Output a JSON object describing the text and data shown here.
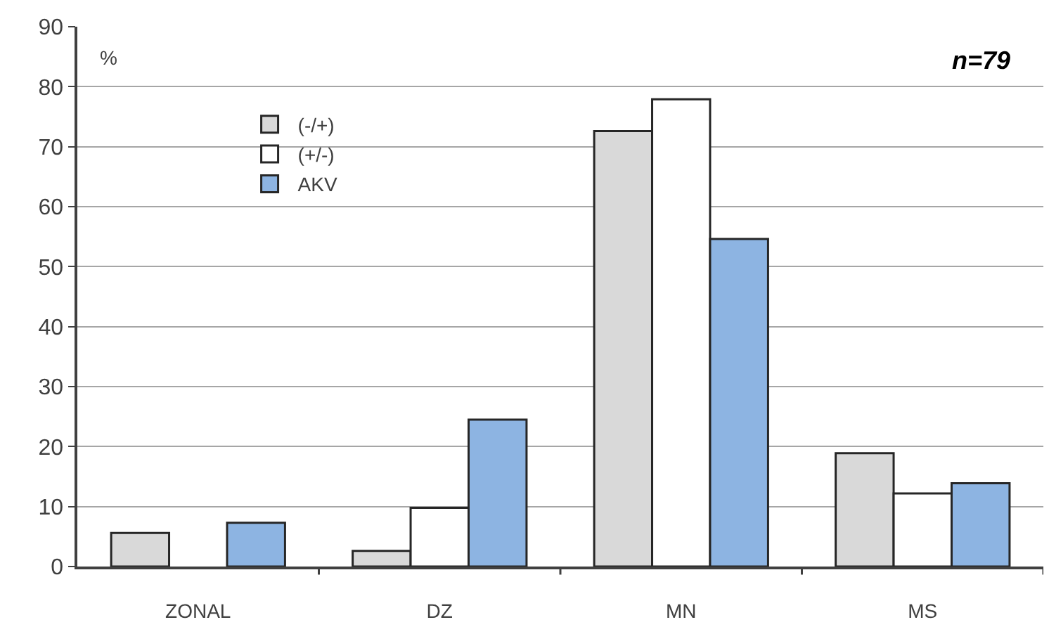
{
  "chart_data": {
    "type": "bar",
    "categories": [
      "ZONAL",
      "DZ",
      "MN",
      "MS"
    ],
    "series": [
      {
        "name": "(-/+)",
        "color": "#d9d9d9",
        "values": [
          5.6,
          2.6,
          72.6,
          18.9
        ]
      },
      {
        "name": "(+/-)",
        "color": "#ffffff",
        "values": [
          null,
          9.8,
          77.9,
          12.2
        ]
      },
      {
        "name": "AKV",
        "color": "#8db4e2",
        "values": [
          7.3,
          24.5,
          54.6,
          13.9
        ]
      }
    ],
    "ylim": [
      0,
      90
    ],
    "yticks": [
      0,
      10,
      20,
      30,
      40,
      50,
      60,
      70,
      80,
      90
    ],
    "grid": "y",
    "legend": "top left",
    "annotations": [
      "%",
      "n=79"
    ]
  }
}
